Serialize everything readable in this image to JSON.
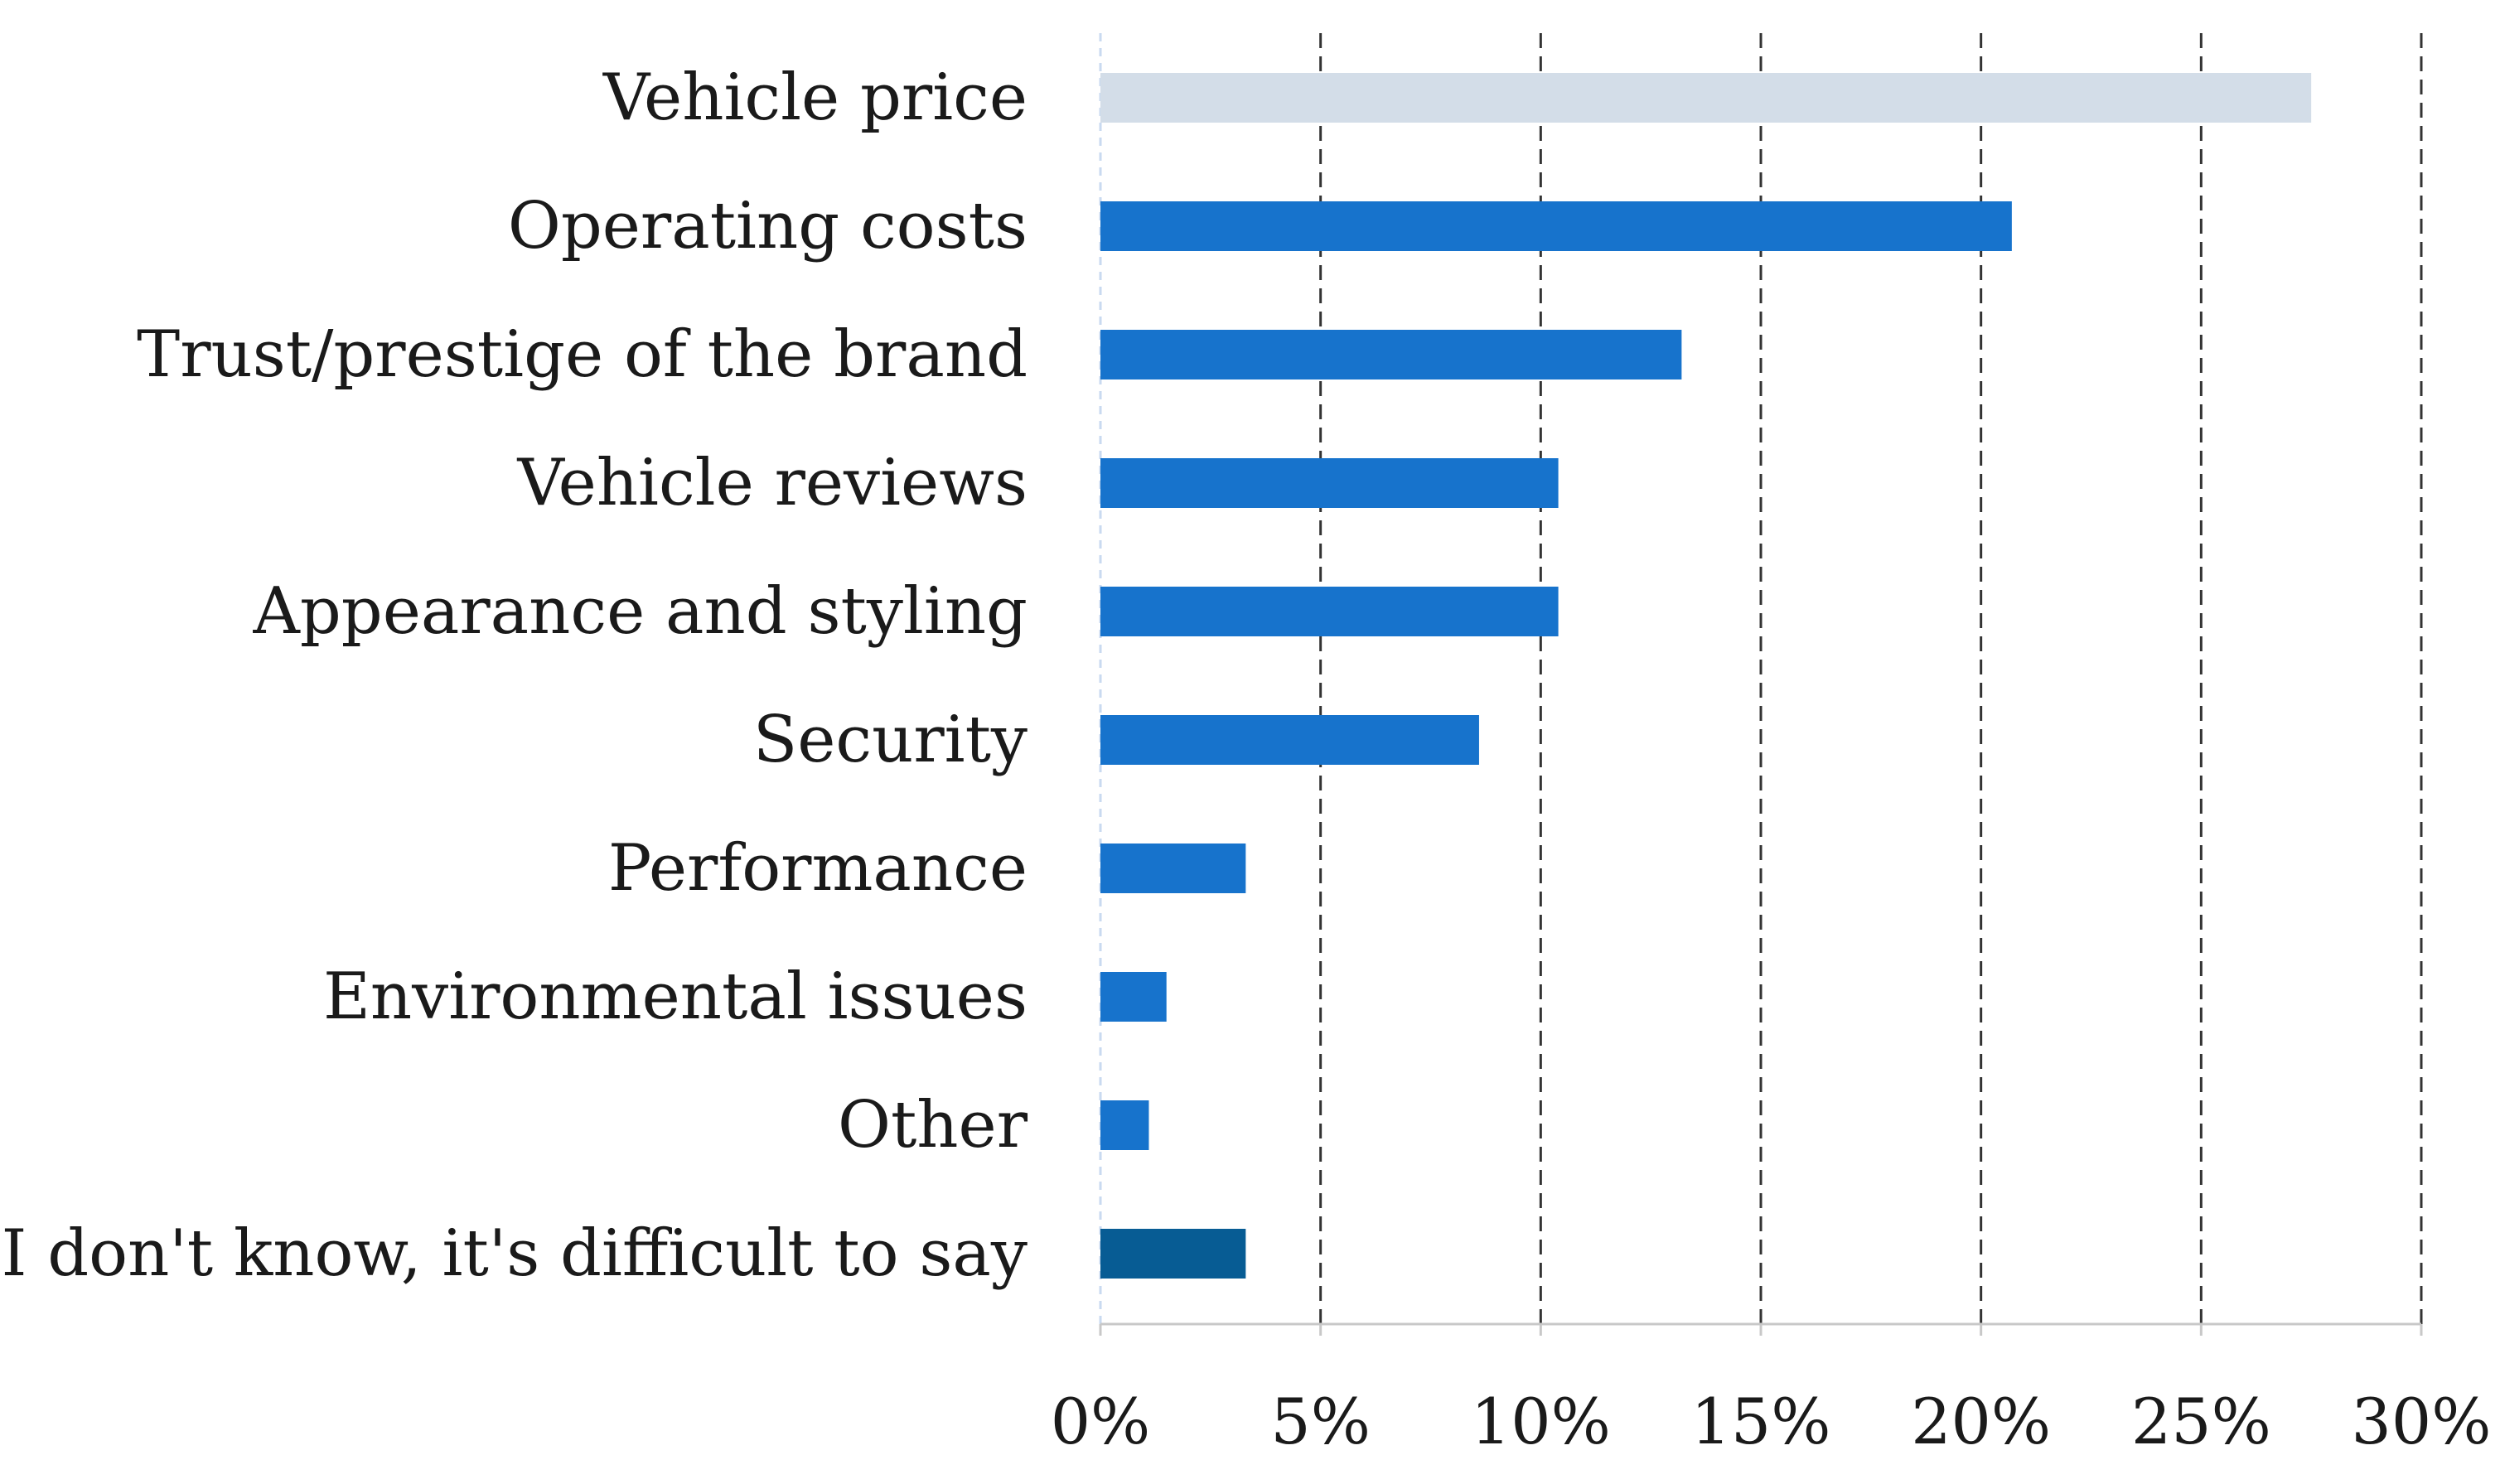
{
  "chart_data": {
    "type": "bar",
    "orientation": "horizontal",
    "title": "",
    "xlabel": "",
    "ylabel": "",
    "xlim": [
      0,
      30
    ],
    "x_ticks": [
      0,
      5,
      10,
      15,
      20,
      25,
      30
    ],
    "tick_suffix": "%",
    "grid": "vertical-dashed",
    "categories": [
      "Vehicle price",
      "Operating costs",
      "Trust/prestige of the brand",
      "Vehicle reviews",
      "Appearance and styling",
      "Security",
      "Performance",
      "Environmental issues",
      "Other",
      "I don't know, it's difficult to say"
    ],
    "values": [
      27.5,
      20.7,
      13.2,
      10.4,
      10.4,
      8.6,
      3.3,
      1.5,
      1.1,
      3.3
    ],
    "bar_colors": [
      "#d3dde8",
      "#1773cc",
      "#1773cc",
      "#1773cc",
      "#1773cc",
      "#1773cc",
      "#1773cc",
      "#1773cc",
      "#1773cc",
      "#075c94"
    ]
  }
}
